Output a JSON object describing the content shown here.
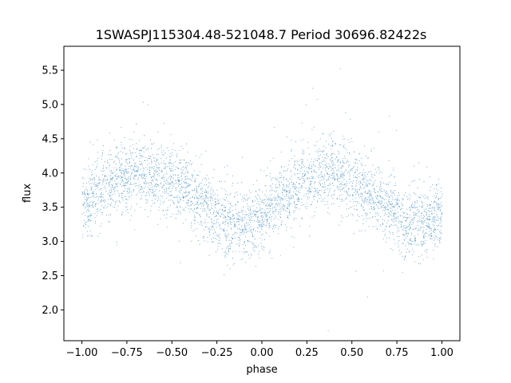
{
  "chart_data": {
    "type": "scatter",
    "title": "1SWASPJ115304.48-521048.7 Period 30696.82422s",
    "xlabel": "phase",
    "ylabel": "flux",
    "xlim": [
      -1.1,
      1.1
    ],
    "ylim": [
      1.55,
      5.85
    ],
    "xticks": [
      -1.0,
      -0.75,
      -0.5,
      -0.25,
      0.0,
      0.25,
      0.5,
      0.75,
      1.0
    ],
    "xtick_labels": [
      "−1.00",
      "−0.75",
      "−0.50",
      "−0.25",
      "0.00",
      "0.25",
      "0.50",
      "0.75",
      "1.00"
    ],
    "yticks": [
      2.0,
      2.5,
      3.0,
      3.5,
      4.0,
      4.5,
      5.0,
      5.5
    ],
    "ytick_labels": [
      "2.0",
      "2.5",
      "3.0",
      "3.5",
      "4.0",
      "4.5",
      "5.0",
      "5.5"
    ],
    "point_color": "#1f77b4",
    "grid": false,
    "series": [
      {
        "phase": [
          -1.0,
          -0.9,
          -0.8,
          -0.7,
          -0.6,
          -0.5,
          -0.4,
          -0.3,
          -0.2,
          -0.1,
          0.0,
          0.1,
          0.2,
          0.3,
          0.4,
          0.5,
          0.6,
          0.7,
          0.8,
          0.9,
          1.0
        ],
        "mean_flux": [
          3.55,
          3.75,
          3.9,
          4.02,
          3.98,
          3.88,
          3.72,
          3.5,
          3.28,
          3.22,
          3.4,
          3.6,
          3.82,
          3.98,
          4.0,
          3.9,
          3.72,
          3.5,
          3.28,
          3.25,
          3.38
        ],
        "scatter_std": 0.25,
        "approx_points": 6000
      }
    ]
  }
}
